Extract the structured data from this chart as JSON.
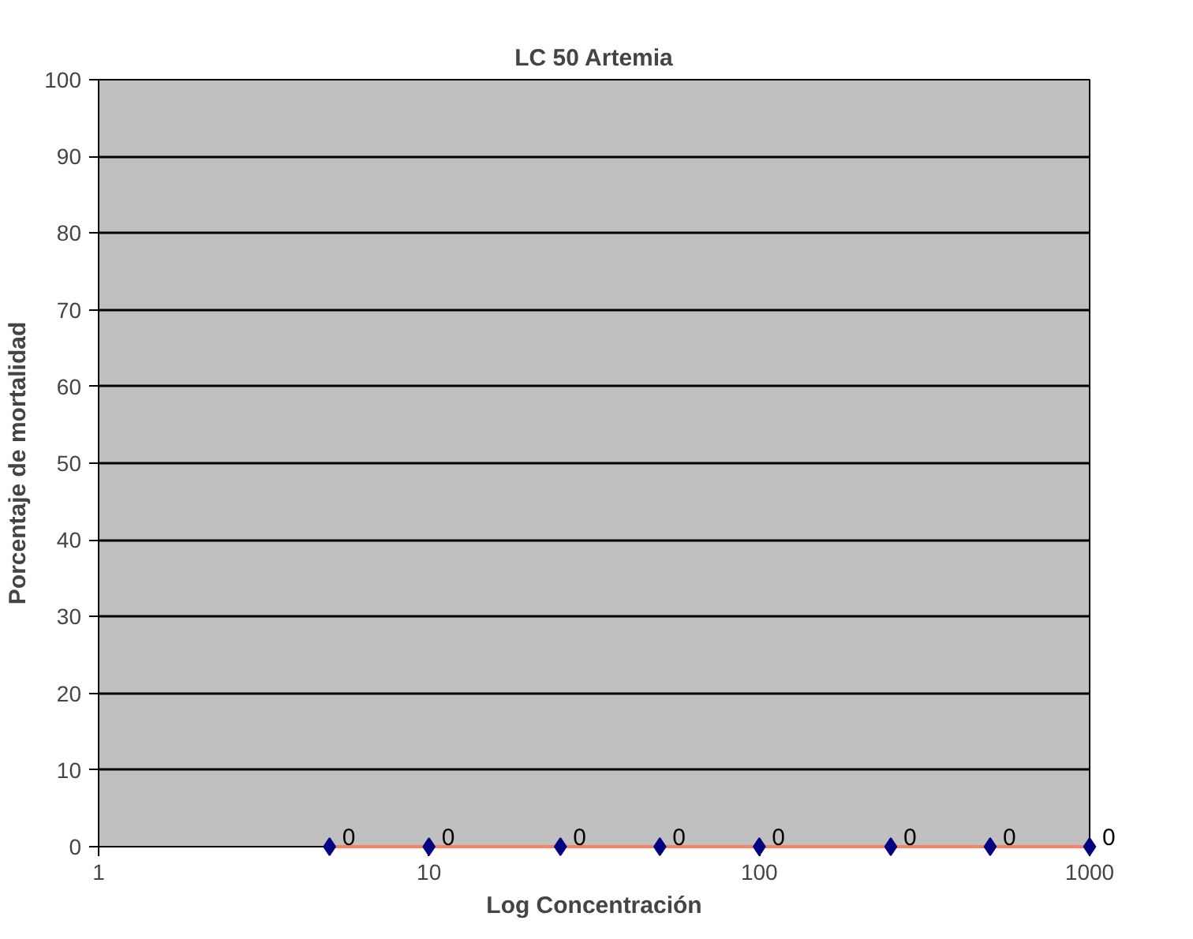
{
  "chart_data": {
    "type": "scatter",
    "title": "LC 50 Artemia",
    "xlabel": "Log Concentración",
    "ylabel": "Porcentaje de mortalidad",
    "log": "x",
    "xlim": [
      1,
      1000
    ],
    "xticks": [
      1,
      10,
      100,
      1000
    ],
    "ylim": [
      0,
      100
    ],
    "yticks": [
      0,
      10,
      20,
      30,
      40,
      50,
      60,
      70,
      80,
      90,
      100
    ],
    "grid": "y",
    "marker": "diamond",
    "series": [
      {
        "type": "line",
        "marker": "none",
        "color": "#ff8060",
        "x": [
          5,
          1000
        ],
        "values": [
          0,
          0
        ]
      },
      {
        "type": "scatter",
        "color": "#000080",
        "x": [
          5,
          10,
          25,
          50,
          100,
          250,
          500,
          1000
        ],
        "values": [
          0,
          0,
          0,
          0,
          0,
          0,
          0,
          0
        ],
        "value_labels": [
          "0",
          "0",
          "0",
          "0",
          "0",
          "0",
          "0",
          "0"
        ]
      }
    ]
  }
}
